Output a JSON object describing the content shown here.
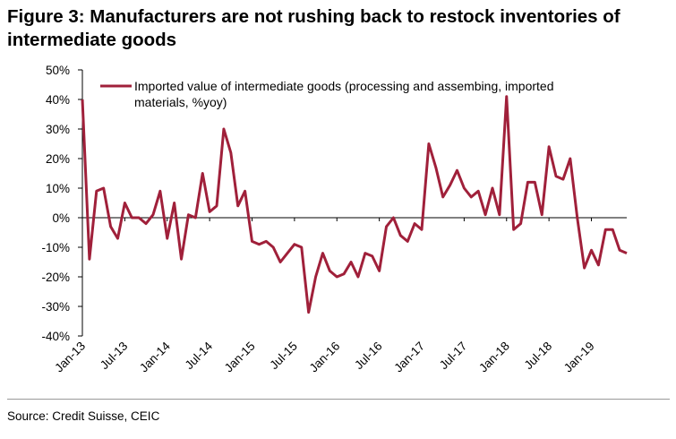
{
  "chart_data": {
    "type": "line",
    "title": "Figure 3: Manufacturers are not rushing back to restock inventories of intermediate goods",
    "source": "Source: Credit Suisse, CEIC",
    "categories": [
      "Jan-13",
      null,
      null,
      null,
      null,
      null,
      "Jul-13",
      null,
      null,
      null,
      null,
      null,
      "Jan-14",
      null,
      null,
      null,
      null,
      null,
      "Jul-14",
      null,
      null,
      null,
      null,
      null,
      "Jan-15",
      null,
      null,
      null,
      null,
      null,
      "Jul-15",
      null,
      null,
      null,
      null,
      null,
      "Jan-16",
      null,
      null,
      null,
      null,
      null,
      "Jul-16",
      null,
      null,
      null,
      null,
      null,
      "Jan-17",
      null,
      null,
      null,
      null,
      null,
      "Jul-17",
      null,
      null,
      null,
      null,
      null,
      "Jan-18",
      null,
      null,
      null,
      null,
      null,
      "Jul-18",
      null,
      null,
      null,
      null,
      null,
      "Jan-19",
      null,
      null,
      null,
      null,
      null
    ],
    "series": [
      {
        "name": "Imported value of intermediate goods (processing and assembing, imported materials, %yoy)",
        "color": "#a0203a",
        "values": [
          40,
          -14,
          9,
          10,
          -3,
          -7,
          5,
          0,
          0,
          -2,
          1,
          9,
          -7,
          5,
          -14,
          1,
          0,
          15,
          2,
          4,
          30,
          22,
          4,
          9,
          -8,
          -9,
          -8,
          -10,
          -15,
          -12,
          -9,
          -10,
          -32,
          -20,
          -12,
          -18,
          -20,
          -19,
          -15,
          -20,
          -12,
          -13,
          -18,
          -3,
          0,
          -6,
          -8,
          -2,
          -4,
          25,
          17,
          7,
          11,
          16,
          10,
          7,
          9,
          1,
          10,
          1,
          41,
          -4,
          -2,
          12,
          12,
          1,
          24,
          14,
          13,
          20,
          0,
          -17,
          -11,
          -16,
          -4,
          -4,
          -11,
          -12
        ]
      }
    ],
    "ylim": [
      -40,
      50
    ],
    "yticks": [
      {
        "value": -40,
        "label": "-40%"
      },
      {
        "value": -30,
        "label": "-30%"
      },
      {
        "value": -20,
        "label": "-20%"
      },
      {
        "value": -10,
        "label": "-10%"
      },
      {
        "value": 0,
        "label": "0%"
      },
      {
        "value": 10,
        "label": "10%"
      },
      {
        "value": 20,
        "label": "20%"
      },
      {
        "value": 30,
        "label": "30%"
      },
      {
        "value": 40,
        "label": "40%"
      },
      {
        "value": 50,
        "label": "50%"
      }
    ],
    "grid": false,
    "legend": "top-left"
  }
}
